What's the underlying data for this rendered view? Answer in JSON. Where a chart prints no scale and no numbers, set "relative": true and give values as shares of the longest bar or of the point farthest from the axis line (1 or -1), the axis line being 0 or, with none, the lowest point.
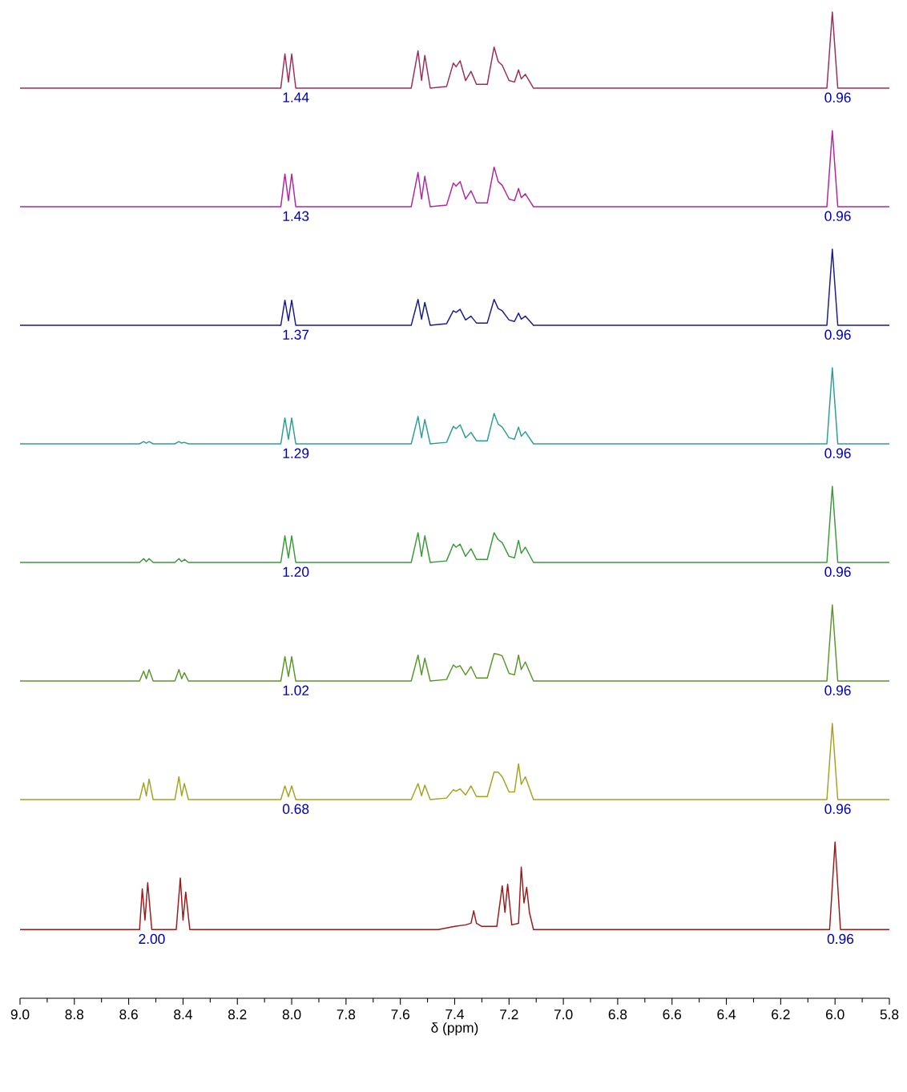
{
  "chart_data": [
    {
      "type": "line",
      "relative": true,
      "color": "#9b2d5a",
      "xlim": [
        9.0,
        5.8
      ],
      "tick_labels": false,
      "x": [
        9.0,
        8.04,
        8.025,
        8.012,
        8.0,
        7.985,
        7.56,
        7.535,
        7.522,
        7.51,
        7.49,
        7.43,
        7.405,
        7.395,
        7.38,
        7.36,
        7.34,
        7.32,
        7.28,
        7.255,
        7.24,
        7.225,
        7.2,
        7.18,
        7.165,
        7.155,
        7.14,
        7.11,
        6.03,
        6.01,
        5.99,
        5.8
      ],
      "values": [
        0,
        0,
        0.45,
        0.08,
        0.45,
        0,
        0,
        0.49,
        0.1,
        0.43,
        0,
        0.02,
        0.33,
        0.28,
        0.36,
        0.1,
        0.22,
        0.05,
        0.05,
        0.54,
        0.35,
        0.3,
        0.1,
        0.08,
        0.24,
        0.12,
        0.18,
        0,
        0,
        1,
        0,
        0
      ],
      "annotations": [
        {
          "text": "1.44",
          "x": 7.985,
          "y": 0
        },
        {
          "text": "0.96",
          "x": 5.99,
          "y": 0
        }
      ]
    },
    {
      "type": "line",
      "relative": true,
      "color": "#b0279f",
      "xlim": [
        9.0,
        5.8
      ],
      "tick_labels": false,
      "x": [
        9.0,
        8.04,
        8.025,
        8.012,
        8.0,
        7.985,
        7.56,
        7.535,
        7.522,
        7.51,
        7.49,
        7.43,
        7.405,
        7.395,
        7.38,
        7.36,
        7.34,
        7.32,
        7.28,
        7.255,
        7.24,
        7.225,
        7.2,
        7.18,
        7.165,
        7.155,
        7.14,
        7.11,
        6.03,
        6.01,
        5.99,
        5.8
      ],
      "values": [
        0,
        0,
        0.43,
        0.08,
        0.43,
        0,
        0,
        0.45,
        0.1,
        0.4,
        0,
        0.02,
        0.31,
        0.27,
        0.33,
        0.1,
        0.21,
        0.05,
        0.05,
        0.52,
        0.33,
        0.28,
        0.1,
        0.08,
        0.24,
        0.12,
        0.17,
        0,
        0,
        1,
        0,
        0
      ],
      "annotations": [
        {
          "text": "1.43",
          "x": 7.985,
          "y": 0
        },
        {
          "text": "0.96",
          "x": 5.99,
          "y": 0
        }
      ]
    },
    {
      "type": "line",
      "relative": true,
      "color": "#1a1a8c",
      "xlim": [
        9.0,
        5.8
      ],
      "tick_labels": false,
      "x": [
        9.0,
        8.04,
        8.025,
        8.012,
        8.0,
        7.985,
        7.56,
        7.535,
        7.522,
        7.51,
        7.49,
        7.43,
        7.405,
        7.395,
        7.38,
        7.36,
        7.34,
        7.32,
        7.28,
        7.255,
        7.24,
        7.225,
        7.2,
        7.18,
        7.165,
        7.155,
        7.14,
        7.11,
        6.03,
        6.01,
        5.99,
        5.8
      ],
      "values": [
        0,
        0,
        0.33,
        0.06,
        0.33,
        0,
        0,
        0.34,
        0.08,
        0.3,
        0,
        0.02,
        0.19,
        0.17,
        0.21,
        0.07,
        0.12,
        0.03,
        0.03,
        0.34,
        0.22,
        0.19,
        0.07,
        0.05,
        0.16,
        0.08,
        0.12,
        0,
        0,
        1,
        0,
        0
      ],
      "annotations": [
        {
          "text": "1.37",
          "x": 7.985,
          "y": 0
        },
        {
          "text": "0.96",
          "x": 5.99,
          "y": 0
        }
      ]
    },
    {
      "type": "line",
      "relative": true,
      "color": "#2e9e94",
      "xlim": [
        9.0,
        5.8
      ],
      "tick_labels": false,
      "x": [
        9.0,
        8.56,
        8.545,
        8.535,
        8.525,
        8.51,
        8.43,
        8.415,
        8.405,
        8.395,
        8.38,
        8.04,
        8.025,
        8.012,
        8.0,
        7.985,
        7.56,
        7.535,
        7.522,
        7.51,
        7.49,
        7.43,
        7.405,
        7.395,
        7.38,
        7.36,
        7.34,
        7.32,
        7.28,
        7.255,
        7.24,
        7.225,
        7.2,
        7.18,
        7.165,
        7.155,
        7.14,
        7.11,
        6.03,
        6.01,
        5.99,
        5.8
      ],
      "values": [
        0,
        0,
        0.03,
        0.01,
        0.03,
        0,
        0,
        0.03,
        0.01,
        0.02,
        0,
        0,
        0.34,
        0.06,
        0.34,
        0,
        0,
        0.36,
        0.08,
        0.32,
        0,
        0.02,
        0.23,
        0.2,
        0.25,
        0.08,
        0.15,
        0.04,
        0.04,
        0.4,
        0.26,
        0.22,
        0.08,
        0.06,
        0.22,
        0.1,
        0.16,
        0,
        0,
        1,
        0,
        0
      ],
      "annotations": [
        {
          "text": "1.29",
          "x": 7.985,
          "y": 0
        },
        {
          "text": "0.96",
          "x": 5.99,
          "y": 0
        }
      ]
    },
    {
      "type": "line",
      "relative": true,
      "color": "#3a9a3a",
      "xlim": [
        9.0,
        5.8
      ],
      "tick_labels": false,
      "x": [
        9.0,
        8.56,
        8.545,
        8.535,
        8.525,
        8.51,
        8.43,
        8.415,
        8.405,
        8.395,
        8.38,
        8.04,
        8.025,
        8.012,
        8.0,
        7.985,
        7.56,
        7.535,
        7.522,
        7.51,
        7.49,
        7.43,
        7.405,
        7.395,
        7.38,
        7.36,
        7.34,
        7.32,
        7.28,
        7.255,
        7.24,
        7.225,
        7.2,
        7.18,
        7.165,
        7.155,
        7.14,
        7.11,
        6.03,
        6.01,
        5.99,
        5.8
      ],
      "values": [
        0,
        0,
        0.05,
        0.01,
        0.05,
        0,
        0,
        0.05,
        0.01,
        0.04,
        0,
        0,
        0.35,
        0.06,
        0.35,
        0,
        0,
        0.39,
        0.08,
        0.35,
        0,
        0.02,
        0.24,
        0.2,
        0.24,
        0.08,
        0.18,
        0.04,
        0.04,
        0.39,
        0.3,
        0.26,
        0.08,
        0.06,
        0.29,
        0.12,
        0.2,
        0,
        0,
        1,
        0,
        0
      ],
      "annotations": [
        {
          "text": "1.20",
          "x": 7.985,
          "y": 0
        },
        {
          "text": "0.96",
          "x": 5.99,
          "y": 0
        }
      ]
    },
    {
      "type": "line",
      "relative": true,
      "color": "#5a962a",
      "xlim": [
        9.0,
        5.8
      ],
      "tick_labels": false,
      "x": [
        9.0,
        8.56,
        8.545,
        8.535,
        8.525,
        8.51,
        8.43,
        8.415,
        8.405,
        8.395,
        8.38,
        8.04,
        8.025,
        8.012,
        8.0,
        7.985,
        7.56,
        7.535,
        7.522,
        7.51,
        7.49,
        7.43,
        7.405,
        7.395,
        7.38,
        7.36,
        7.34,
        7.32,
        7.28,
        7.255,
        7.24,
        7.225,
        7.2,
        7.18,
        7.165,
        7.155,
        7.14,
        7.11,
        6.03,
        6.01,
        5.99,
        5.8
      ],
      "values": [
        0,
        0,
        0.13,
        0.03,
        0.15,
        0,
        0,
        0.15,
        0.03,
        0.11,
        0,
        0,
        0.32,
        0.06,
        0.32,
        0,
        0,
        0.34,
        0.08,
        0.3,
        0,
        0.02,
        0.21,
        0.18,
        0.2,
        0.08,
        0.19,
        0.04,
        0.04,
        0.36,
        0.35,
        0.33,
        0.1,
        0.08,
        0.34,
        0.15,
        0.25,
        0,
        0,
        1,
        0,
        0
      ],
      "annotations": [
        {
          "text": "1.02",
          "x": 7.985,
          "y": 0
        },
        {
          "text": "0.96",
          "x": 5.99,
          "y": 0
        }
      ]
    },
    {
      "type": "line",
      "relative": true,
      "color": "#a3a321",
      "xlim": [
        9.0,
        5.8
      ],
      "tick_labels": false,
      "x": [
        9.0,
        8.56,
        8.545,
        8.535,
        8.525,
        8.51,
        8.43,
        8.415,
        8.405,
        8.395,
        8.38,
        8.04,
        8.025,
        8.012,
        8.0,
        7.985,
        7.56,
        7.535,
        7.522,
        7.51,
        7.49,
        7.43,
        7.405,
        7.395,
        7.38,
        7.36,
        7.34,
        7.32,
        7.28,
        7.255,
        7.24,
        7.225,
        7.2,
        7.18,
        7.165,
        7.155,
        7.14,
        7.11,
        6.03,
        6.01,
        5.99,
        5.8
      ],
      "values": [
        0,
        0,
        0.22,
        0.05,
        0.27,
        0,
        0,
        0.3,
        0.05,
        0.21,
        0,
        0,
        0.18,
        0.04,
        0.18,
        0,
        0,
        0.21,
        0.05,
        0.19,
        0,
        0.02,
        0.13,
        0.11,
        0.14,
        0.06,
        0.18,
        0.04,
        0.04,
        0.36,
        0.36,
        0.3,
        0.1,
        0.1,
        0.47,
        0.2,
        0.3,
        0,
        0,
        1,
        0,
        0
      ],
      "annotations": [
        {
          "text": "0.68",
          "x": 7.985,
          "y": 0
        },
        {
          "text": "0.96",
          "x": 5.99,
          "y": 0
        }
      ]
    },
    {
      "type": "line",
      "relative": true,
      "color": "#9b1a1a",
      "xlim": [
        9.0,
        5.8
      ],
      "tick_labels": "x",
      "xlabel": "δ (ppm)",
      "xticks": [
        {
          "value": 9,
          "label": "9.0"
        },
        8.8,
        8.6,
        8.4,
        8.2,
        {
          "value": 8,
          "label": "8.0"
        },
        7.8,
        7.6,
        7.4,
        7.2,
        {
          "value": 7,
          "label": "7.0"
        },
        6.8,
        6.6,
        6.4,
        6.2,
        {
          "value": 6,
          "label": "6.0"
        },
        5.8
      ],
      "x": [
        9.0,
        8.56,
        8.55,
        8.54,
        8.53,
        8.515,
        8.425,
        8.41,
        8.4,
        8.39,
        8.375,
        7.46,
        7.4,
        7.36,
        7.34,
        7.33,
        7.32,
        7.3,
        7.245,
        7.225,
        7.215,
        7.205,
        7.19,
        7.165,
        7.155,
        7.145,
        7.135,
        7.125,
        7.11,
        6.02,
        6.0,
        5.98,
        5.8
      ],
      "values": [
        0.44,
        0.44,
        0.7,
        0.5,
        0.74,
        0.44,
        0.44,
        0.77,
        0.5,
        0.68,
        0.44,
        0.44,
        0.46,
        0.47,
        0.48,
        0.56,
        0.48,
        0.46,
        0.46,
        0.72,
        0.55,
        0.73,
        0.47,
        0.48,
        0.84,
        0.61,
        0.71,
        0.55,
        0.44,
        0.44,
        1,
        0.44,
        0.44
      ],
      "annotations": [
        {
          "text": "2.00",
          "x": 8.515,
          "y": 0.44
        },
        {
          "text": "0.96",
          "x": 5.98,
          "y": 0.44
        }
      ]
    }
  ]
}
